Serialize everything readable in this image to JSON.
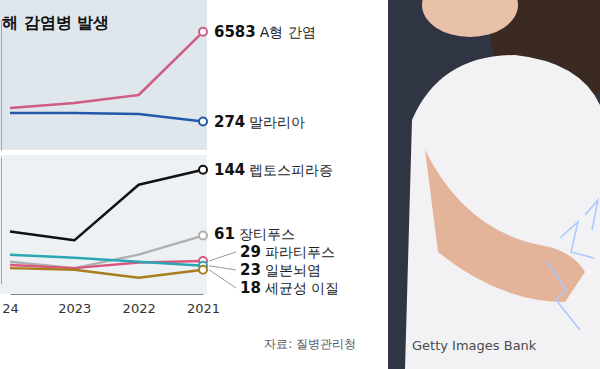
{
  "image_credit": "Getty Images Bank",
  "chart_data": [
    {
      "type": "line",
      "title": "해 감염병 발생",
      "categories": [
        "24",
        "2023",
        "2022",
        "2021"
      ],
      "log": "y",
      "ylim": [
        100,
        10000
      ],
      "tick_labels": false,
      "data_labels": true,
      "series": [
        {
          "name": "A형 간염",
          "color": "#cf5c86",
          "marker": "end-circle",
          "values": [
            443,
            528,
            702,
            6583
          ]
        },
        {
          "name": "말라리아",
          "color": "#2458a8",
          "marker": "end-circle",
          "values": [
            371,
            370,
            358,
            274
          ]
        }
      ]
    },
    {
      "type": "line",
      "source": "자료: 질병관리청",
      "categories": [
        "24",
        "2023",
        "2022",
        "2021"
      ],
      "ylim": [
        0,
        160
      ],
      "tick_labels": "x",
      "data_labels": true,
      "series": [
        {
          "name": "렙토스피라증",
          "color": "#111111",
          "marker": "end-circle",
          "values": [
            66,
            55,
            125,
            144
          ]
        },
        {
          "name": "장티푸스",
          "color": "#b0b0b0",
          "marker": "end-circle",
          "values": [
            28,
            20,
            37,
            61
          ]
        },
        {
          "name": "파라티푸스",
          "color": "#d9577f",
          "marker": "end-circle",
          "values": [
            24,
            20,
            27,
            29
          ]
        },
        {
          "name": "일본뇌염",
          "color": "#2aa6b5",
          "marker": "end-circle",
          "values": [
            37,
            33,
            28,
            23
          ]
        },
        {
          "name": "세균성 이질",
          "color": "#a77d1e",
          "marker": "end-circle",
          "values": [
            20,
            18,
            8,
            18
          ]
        }
      ]
    }
  ]
}
